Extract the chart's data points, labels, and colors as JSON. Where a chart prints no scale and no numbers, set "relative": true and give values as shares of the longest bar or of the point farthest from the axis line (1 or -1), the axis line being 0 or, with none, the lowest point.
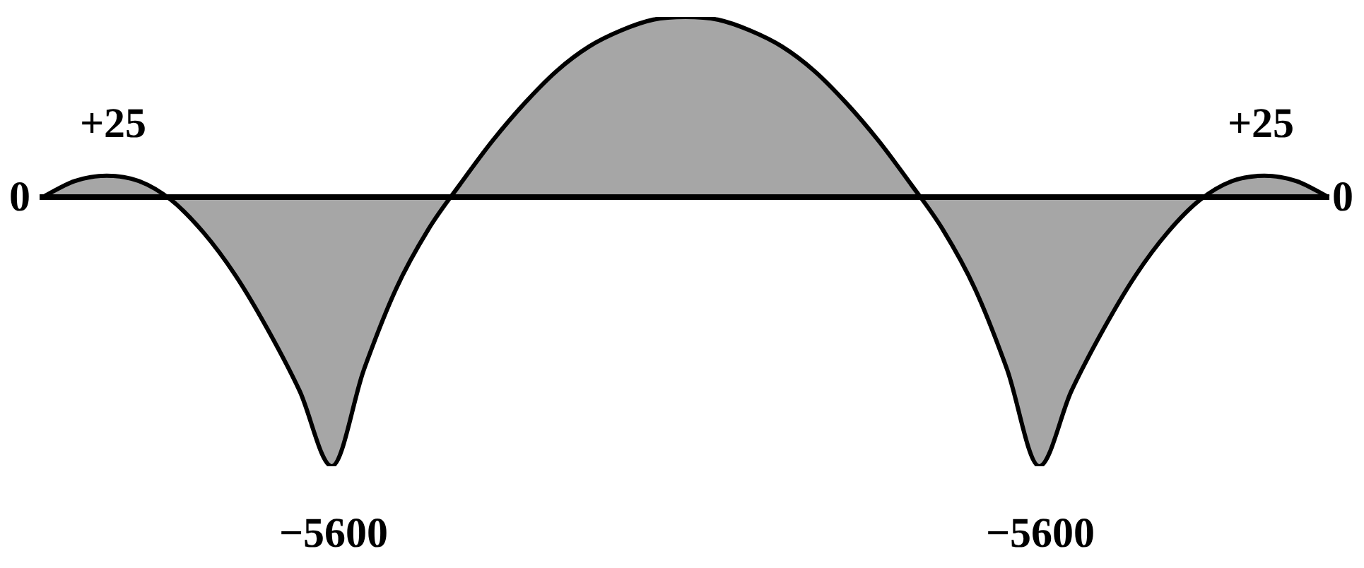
{
  "chart_data": {
    "type": "area",
    "relative": true,
    "legend": false,
    "grid": false,
    "categories": [
      null,
      null,
      null,
      null,
      null,
      null,
      null,
      null,
      null,
      null,
      null,
      null,
      null,
      null,
      null,
      null,
      null,
      null,
      null,
      null,
      null,
      null,
      null,
      null,
      null,
      null,
      null,
      null,
      null,
      null,
      null,
      null,
      null,
      null,
      null,
      null,
      null,
      null,
      null,
      null,
      null
    ],
    "series": [
      {
        "color": "#000000",
        "values": [
          0,
          0.06,
          0.08,
          0.06,
          -0.01,
          -0.13,
          -0.29,
          -0.49,
          -0.72,
          -1,
          -0.64,
          -0.34,
          -0.12,
          0.05,
          0.21,
          0.35,
          0.47,
          0.56,
          0.62,
          0.66,
          0.67,
          0.66,
          0.62,
          0.56,
          0.47,
          0.35,
          0.21,
          0.05,
          -0.12,
          -0.34,
          -0.64,
          -1,
          -0.72,
          -0.49,
          -0.29,
          -0.13,
          -0.01,
          0.06,
          0.08,
          0.06,
          0
        ]
      }
    ],
    "annotations": [
      "+25",
      "0",
      "−5600",
      "−5600",
      "+25",
      "0"
    ]
  }
}
